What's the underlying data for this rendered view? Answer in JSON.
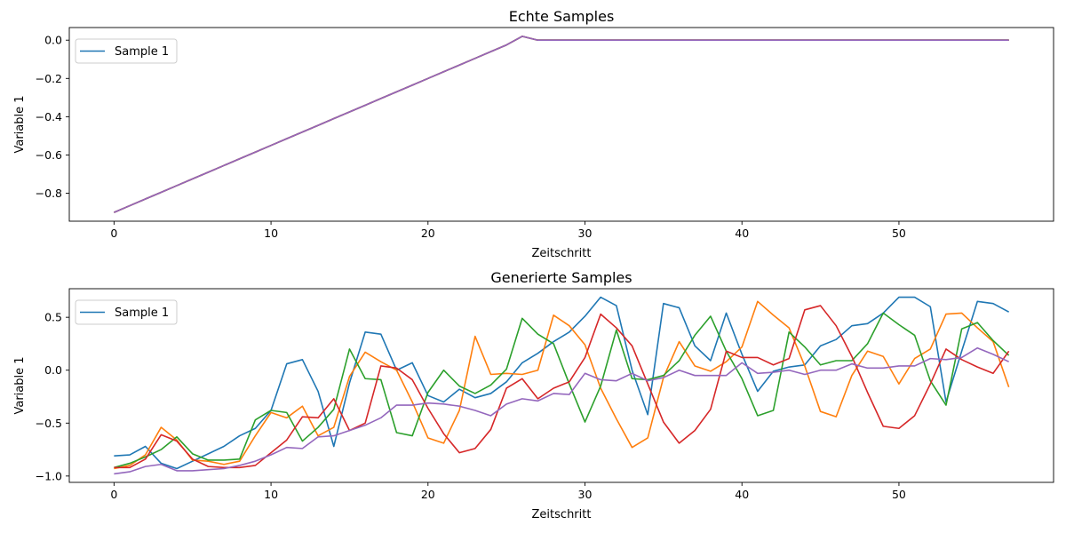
{
  "chart_data": [
    {
      "type": "line",
      "title": "Echte Samples",
      "xlabel": "Zeitschritt",
      "ylabel": "Variable 1",
      "xlim": [
        -2.85,
        59.85
      ],
      "ylim": [
        -0.946,
        0.066
      ],
      "xticks": [
        0,
        10,
        20,
        30,
        40,
        50
      ],
      "yticks": [
        -0.8,
        -0.6,
        -0.4,
        -0.2,
        0.0
      ],
      "ytick_labels": [
        "−0.8",
        "−0.6",
        "−0.4",
        "−0.2",
        "0.0"
      ],
      "legend": {
        "position": "upper-left",
        "entries": [
          "Sample 1"
        ]
      },
      "grid": false,
      "x": [
        0,
        1,
        2,
        3,
        4,
        5,
        6,
        7,
        8,
        9,
        10,
        11,
        12,
        13,
        14,
        15,
        16,
        17,
        18,
        19,
        20,
        21,
        22,
        23,
        24,
        25,
        26,
        27,
        28,
        29,
        30,
        31,
        32,
        33,
        34,
        35,
        36,
        37,
        38,
        39,
        40,
        41,
        42,
        43,
        44,
        45,
        46,
        47,
        48,
        49,
        50,
        51,
        52,
        53,
        54,
        55,
        56,
        57
      ],
      "series": [
        {
          "name": "Sample 1",
          "color": "#1f77b4",
          "values": [
            -0.9,
            -0.865,
            -0.83,
            -0.795,
            -0.76,
            -0.725,
            -0.69,
            -0.655,
            -0.62,
            -0.585,
            -0.55,
            -0.515,
            -0.48,
            -0.445,
            -0.41,
            -0.375,
            -0.34,
            -0.305,
            -0.27,
            -0.235,
            -0.2,
            -0.165,
            -0.13,
            -0.095,
            -0.06,
            -0.025,
            0.02,
            0.0,
            0,
            0,
            0,
            0,
            0,
            0,
            0,
            0,
            0,
            0,
            0,
            0,
            0,
            0,
            0,
            0,
            0,
            0,
            0,
            0,
            0,
            0,
            0,
            0,
            0,
            0,
            0,
            0,
            0,
            0
          ]
        },
        {
          "color": "#ff7f0e",
          "values": [
            -0.9,
            -0.865,
            -0.83,
            -0.795,
            -0.76,
            -0.725,
            -0.69,
            -0.655,
            -0.62,
            -0.585,
            -0.55,
            -0.515,
            -0.48,
            -0.445,
            -0.41,
            -0.375,
            -0.34,
            -0.305,
            -0.27,
            -0.235,
            -0.2,
            -0.165,
            -0.13,
            -0.095,
            -0.06,
            -0.025,
            0.02,
            0.0,
            0,
            0,
            0,
            0,
            0,
            0,
            0,
            0,
            0,
            0,
            0,
            0,
            0,
            0,
            0,
            0,
            0,
            0,
            0,
            0,
            0,
            0,
            0,
            0,
            0,
            0,
            0,
            0,
            0,
            0
          ]
        },
        {
          "color": "#2ca02c",
          "values": [
            -0.9,
            -0.865,
            -0.83,
            -0.795,
            -0.76,
            -0.725,
            -0.69,
            -0.655,
            -0.62,
            -0.585,
            -0.55,
            -0.515,
            -0.48,
            -0.445,
            -0.41,
            -0.375,
            -0.34,
            -0.305,
            -0.27,
            -0.235,
            -0.2,
            -0.165,
            -0.13,
            -0.095,
            -0.06,
            -0.025,
            0.02,
            0.0,
            0,
            0,
            0,
            0,
            0,
            0,
            0,
            0,
            0,
            0,
            0,
            0,
            0,
            0,
            0,
            0,
            0,
            0,
            0,
            0,
            0,
            0,
            0,
            0,
            0,
            0,
            0,
            0,
            0,
            0
          ]
        },
        {
          "color": "#d62728",
          "values": [
            -0.9,
            -0.865,
            -0.83,
            -0.795,
            -0.76,
            -0.725,
            -0.69,
            -0.655,
            -0.62,
            -0.585,
            -0.55,
            -0.515,
            -0.48,
            -0.445,
            -0.41,
            -0.375,
            -0.34,
            -0.305,
            -0.27,
            -0.235,
            -0.2,
            -0.165,
            -0.13,
            -0.095,
            -0.06,
            -0.025,
            0.02,
            0.0,
            0,
            0,
            0,
            0,
            0,
            0,
            0,
            0,
            0,
            0,
            0,
            0,
            0,
            0,
            0,
            0,
            0,
            0,
            0,
            0,
            0,
            0,
            0,
            0,
            0,
            0,
            0,
            0,
            0,
            0
          ]
        },
        {
          "color": "#9467bd",
          "values": [
            -0.9,
            -0.865,
            -0.83,
            -0.795,
            -0.76,
            -0.725,
            -0.69,
            -0.655,
            -0.62,
            -0.585,
            -0.55,
            -0.515,
            -0.48,
            -0.445,
            -0.41,
            -0.375,
            -0.34,
            -0.305,
            -0.27,
            -0.235,
            -0.2,
            -0.165,
            -0.13,
            -0.095,
            -0.06,
            -0.025,
            0.02,
            0.0,
            0,
            0,
            0,
            0,
            0,
            0,
            0,
            0,
            0,
            0,
            0,
            0,
            0,
            0,
            0,
            0,
            0,
            0,
            0,
            0,
            0,
            0,
            0,
            0,
            0,
            0,
            0,
            0,
            0,
            0
          ]
        }
      ]
    },
    {
      "type": "line",
      "title": "Generierte Samples",
      "xlabel": "Zeitschritt",
      "ylabel": "Variable 1",
      "xlim": [
        -2.85,
        59.85
      ],
      "ylim": [
        -1.06,
        0.77
      ],
      "xticks": [
        0,
        10,
        20,
        30,
        40,
        50
      ],
      "yticks": [
        -1.0,
        -0.5,
        0.0,
        0.5
      ],
      "ytick_labels": [
        "−1.0",
        "−0.5",
        "0.0",
        "0.5"
      ],
      "legend": {
        "position": "upper-left",
        "entries": [
          "Sample 1"
        ]
      },
      "grid": false,
      "x": [
        0,
        1,
        2,
        3,
        4,
        5,
        6,
        7,
        8,
        9,
        10,
        11,
        12,
        13,
        14,
        15,
        16,
        17,
        18,
        19,
        20,
        21,
        22,
        23,
        24,
        25,
        26,
        27,
        28,
        29,
        30,
        31,
        32,
        33,
        34,
        35,
        36,
        37,
        38,
        39,
        40,
        41,
        42,
        43,
        44,
        45,
        46,
        47,
        48,
        49,
        50,
        51,
        52,
        53,
        54,
        55,
        56,
        57
      ],
      "series": [
        {
          "name": "Sample 1",
          "color": "#1f77b4",
          "values": [
            -0.81,
            -0.8,
            -0.72,
            -0.88,
            -0.93,
            -0.86,
            -0.79,
            -0.72,
            -0.62,
            -0.55,
            -0.38,
            0.06,
            0.1,
            -0.2,
            -0.72,
            -0.12,
            0.36,
            0.34,
            0.0,
            0.07,
            -0.24,
            -0.3,
            -0.18,
            -0.26,
            -0.22,
            -0.11,
            0.07,
            0.16,
            0.27,
            0.36,
            0.51,
            0.69,
            0.61,
            0.0,
            -0.42,
            0.63,
            0.59,
            0.23,
            0.09,
            0.54,
            0.15,
            -0.2,
            -0.01,
            0.03,
            0.05,
            0.23,
            0.29,
            0.42,
            0.44,
            0.54,
            0.69,
            0.69,
            0.6,
            -0.3,
            0.18,
            0.65,
            0.63,
            0.55
          ]
        },
        {
          "color": "#ff7f0e",
          "values": [
            -0.93,
            -0.9,
            -0.8,
            -0.54,
            -0.66,
            -0.85,
            -0.86,
            -0.89,
            -0.86,
            -0.62,
            -0.4,
            -0.45,
            -0.34,
            -0.62,
            -0.54,
            -0.06,
            0.17,
            0.08,
            0.0,
            -0.3,
            -0.64,
            -0.69,
            -0.38,
            0.32,
            -0.04,
            -0.03,
            -0.04,
            0.0,
            0.52,
            0.42,
            0.24,
            -0.17,
            -0.46,
            -0.73,
            -0.64,
            -0.07,
            0.27,
            0.04,
            -0.01,
            0.08,
            0.22,
            0.65,
            0.52,
            0.4,
            0.04,
            -0.39,
            -0.44,
            -0.05,
            0.18,
            0.13,
            -0.13,
            0.11,
            0.2,
            0.53,
            0.54,
            0.4,
            0.27,
            -0.16
          ]
        },
        {
          "color": "#2ca02c",
          "values": [
            -0.92,
            -0.88,
            -0.82,
            -0.75,
            -0.63,
            -0.79,
            -0.85,
            -0.85,
            -0.84,
            -0.47,
            -0.38,
            -0.4,
            -0.67,
            -0.54,
            -0.37,
            0.2,
            -0.08,
            -0.09,
            -0.59,
            -0.62,
            -0.21,
            0.0,
            -0.15,
            -0.22,
            -0.14,
            0.01,
            0.49,
            0.34,
            0.25,
            -0.13,
            -0.49,
            -0.15,
            0.38,
            -0.08,
            -0.09,
            -0.05,
            0.09,
            0.33,
            0.51,
            0.18,
            -0.08,
            -0.43,
            -0.38,
            0.36,
            0.22,
            0.05,
            0.09,
            0.09,
            0.25,
            0.54,
            0.43,
            0.33,
            -0.1,
            -0.33,
            0.39,
            0.45,
            0.28,
            0.14
          ]
        },
        {
          "color": "#d62728",
          "values": [
            -0.92,
            -0.92,
            -0.84,
            -0.61,
            -0.67,
            -0.84,
            -0.91,
            -0.92,
            -0.92,
            -0.9,
            -0.78,
            -0.66,
            -0.44,
            -0.45,
            -0.27,
            -0.57,
            -0.5,
            0.04,
            0.02,
            -0.09,
            -0.36,
            -0.6,
            -0.78,
            -0.74,
            -0.56,
            -0.17,
            -0.08,
            -0.27,
            -0.17,
            -0.11,
            0.12,
            0.53,
            0.4,
            0.23,
            -0.13,
            -0.49,
            -0.69,
            -0.57,
            -0.37,
            0.18,
            0.12,
            0.12,
            0.05,
            0.11,
            0.57,
            0.61,
            0.42,
            0.13,
            -0.21,
            -0.53,
            -0.55,
            -0.43,
            -0.13,
            0.2,
            0.1,
            0.03,
            -0.03,
            0.18
          ]
        },
        {
          "color": "#9467bd",
          "values": [
            -0.98,
            -0.96,
            -0.91,
            -0.89,
            -0.95,
            -0.95,
            -0.94,
            -0.93,
            -0.9,
            -0.86,
            -0.8,
            -0.73,
            -0.74,
            -0.63,
            -0.62,
            -0.57,
            -0.52,
            -0.45,
            -0.33,
            -0.33,
            -0.31,
            -0.32,
            -0.34,
            -0.38,
            -0.43,
            -0.32,
            -0.27,
            -0.29,
            -0.22,
            -0.23,
            -0.03,
            -0.09,
            -0.1,
            -0.03,
            -0.1,
            -0.07,
            0.0,
            -0.05,
            -0.05,
            -0.05,
            0.07,
            -0.03,
            -0.02,
            0.0,
            -0.04,
            0.0,
            0.0,
            0.06,
            0.02,
            0.02,
            0.04,
            0.04,
            0.11,
            0.1,
            0.12,
            0.21,
            0.15,
            0.08
          ]
        }
      ]
    }
  ]
}
